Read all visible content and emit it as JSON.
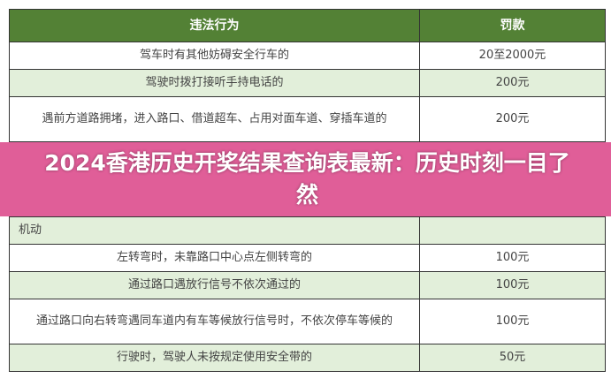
{
  "table": {
    "headers": [
      "违法行为",
      "罚款"
    ],
    "rows": [
      {
        "behavior": "驾车时有其他妨碍安全行车的",
        "fine": "20至2000元"
      },
      {
        "behavior": "驾驶时拨打接听手持电话的",
        "fine": "200元"
      },
      {
        "behavior": "遇前方道路拥堵，进入路口、借道超车、占用对面车道、穿插车道的",
        "fine": "200元"
      },
      {
        "behavior": "机动",
        "fine": ""
      },
      {
        "behavior": "左转弯时，未靠路口中心点左侧转弯的",
        "fine": "100元"
      },
      {
        "behavior": "通过路口遇放行信号不依次通过的",
        "fine": "100元"
      },
      {
        "behavior": "通过路口向右转弯遇同车道内有车等候放行信号时，不依次停车等候的",
        "fine": "100元"
      },
      {
        "behavior": "行驶时，驾驶人未按规定使用安全带的",
        "fine": "50元"
      }
    ]
  },
  "banner": {
    "title": "2024香港历史开奖结果查询表最新：历史时刻一目了然"
  },
  "colors": {
    "header": "#538135",
    "stripe": "#e2efda",
    "banner": "#dd4d8d"
  }
}
